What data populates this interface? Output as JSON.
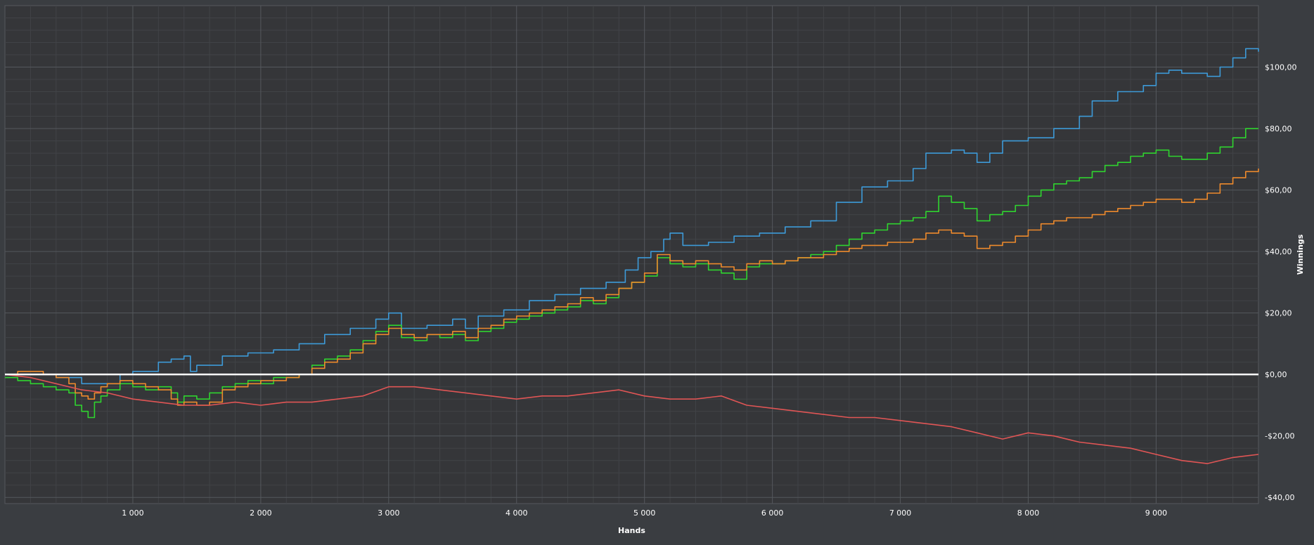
{
  "chart_data": {
    "type": "line",
    "xlabel": "Hands",
    "ylabel": "Winnings",
    "xlim": [
      0,
      9800
    ],
    "ylim": [
      -42,
      120
    ],
    "x_ticks": [
      1000,
      2000,
      3000,
      4000,
      5000,
      6000,
      7000,
      8000,
      9000
    ],
    "x_tick_labels": [
      "1 000",
      "2 000",
      "3 000",
      "4 000",
      "5 000",
      "6 000",
      "7 000",
      "8 000",
      "9 000"
    ],
    "y_ticks": [
      -40,
      -20,
      0,
      20,
      40,
      60,
      80,
      100
    ],
    "y_tick_labels": [
      "-$40,00",
      "-$20,00",
      "$0,00",
      "$20,00",
      "$40,00",
      "$60,00",
      "$80,00",
      "$100,00"
    ],
    "grid": true,
    "colors": {
      "background": "#3a3d41",
      "plot_background": "#353639",
      "grid_major": "#55585d",
      "grid_minor": "#414347",
      "zero_line": "#ffffff"
    },
    "series": [
      {
        "color": "#3d9ad8",
        "style": "step",
        "x": [
          0,
          200,
          400,
          600,
          800,
          900,
          1000,
          1200,
          1300,
          1400,
          1450,
          1500,
          1700,
          1900,
          2100,
          2300,
          2500,
          2700,
          2900,
          3000,
          3100,
          3300,
          3500,
          3600,
          3700,
          3900,
          4100,
          4300,
          4500,
          4700,
          4850,
          4950,
          5050,
          5150,
          5200,
          5300,
          5500,
          5700,
          5900,
          6100,
          6300,
          6500,
          6700,
          6900,
          7100,
          7200,
          7400,
          7500,
          7600,
          7700,
          7800,
          8000,
          8200,
          8400,
          8500,
          8700,
          8900,
          9000,
          9100,
          9200,
          9400,
          9500,
          9600,
          9700,
          9800
        ],
        "y": [
          0,
          0,
          -1,
          -3,
          -3,
          0,
          1,
          4,
          5,
          6,
          1,
          3,
          6,
          7,
          8,
          10,
          13,
          15,
          18,
          20,
          15,
          16,
          18,
          15,
          19,
          21,
          24,
          26,
          28,
          30,
          34,
          38,
          40,
          44,
          46,
          42,
          43,
          45,
          46,
          48,
          50,
          56,
          61,
          63,
          67,
          72,
          73,
          72,
          69,
          72,
          76,
          77,
          80,
          84,
          89,
          92,
          94,
          98,
          99,
          98,
          97,
          100,
          103,
          106,
          105
        ]
      },
      {
        "color": "#2fd42f",
        "style": "step",
        "x": [
          0,
          100,
          200,
          300,
          400,
          500,
          550,
          600,
          650,
          700,
          750,
          800,
          900,
          1000,
          1100,
          1200,
          1300,
          1350,
          1400,
          1500,
          1600,
          1700,
          1800,
          1900,
          2000,
          2100,
          2200,
          2300,
          2400,
          2500,
          2600,
          2700,
          2800,
          2900,
          3000,
          3100,
          3200,
          3300,
          3400,
          3500,
          3600,
          3700,
          3800,
          3900,
          4000,
          4100,
          4200,
          4300,
          4400,
          4500,
          4600,
          4700,
          4800,
          4900,
          5000,
          5100,
          5200,
          5300,
          5400,
          5500,
          5600,
          5700,
          5800,
          5900,
          6000,
          6100,
          6200,
          6300,
          6400,
          6500,
          6600,
          6700,
          6800,
          6900,
          7000,
          7100,
          7200,
          7300,
          7400,
          7500,
          7600,
          7700,
          7800,
          7900,
          8000,
          8100,
          8200,
          8300,
          8400,
          8500,
          8600,
          8700,
          8800,
          8900,
          9000,
          9100,
          9200,
          9300,
          9400,
          9500,
          9600,
          9700,
          9800
        ],
        "y": [
          -1,
          -2,
          -3,
          -4,
          -5,
          -6,
          -10,
          -12,
          -14,
          -9,
          -7,
          -5,
          -3,
          -4,
          -5,
          -4,
          -6,
          -9,
          -7,
          -8,
          -6,
          -4,
          -3,
          -2,
          -3,
          -1,
          -1,
          0,
          3,
          5,
          6,
          8,
          11,
          14,
          16,
          12,
          11,
          13,
          12,
          13,
          11,
          14,
          15,
          17,
          18,
          19,
          20,
          21,
          22,
          24,
          23,
          25,
          28,
          30,
          32,
          38,
          36,
          35,
          36,
          34,
          33,
          31,
          35,
          36,
          36,
          37,
          38,
          39,
          40,
          42,
          44,
          46,
          47,
          49,
          50,
          51,
          53,
          58,
          56,
          54,
          50,
          52,
          53,
          55,
          58,
          60,
          62,
          63,
          64,
          66,
          68,
          69,
          71,
          72,
          73,
          71,
          70,
          70,
          72,
          74,
          77,
          80,
          80
        ]
      },
      {
        "color": "#ee8a2c",
        "style": "step",
        "x": [
          0,
          100,
          200,
          300,
          400,
          500,
          550,
          600,
          650,
          700,
          750,
          800,
          900,
          1000,
          1100,
          1200,
          1300,
          1350,
          1400,
          1500,
          1600,
          1700,
          1800,
          1900,
          2000,
          2100,
          2200,
          2300,
          2400,
          2500,
          2600,
          2700,
          2800,
          2900,
          3000,
          3100,
          3200,
          3300,
          3400,
          3500,
          3600,
          3700,
          3800,
          3900,
          4000,
          4100,
          4200,
          4300,
          4400,
          4500,
          4600,
          4700,
          4800,
          4900,
          5000,
          5100,
          5200,
          5300,
          5400,
          5500,
          5600,
          5700,
          5800,
          5900,
          6000,
          6100,
          6200,
          6300,
          6400,
          6500,
          6600,
          6700,
          6800,
          6900,
          7000,
          7100,
          7200,
          7300,
          7400,
          7500,
          7600,
          7700,
          7800,
          7900,
          8000,
          8100,
          8200,
          8300,
          8400,
          8500,
          8600,
          8700,
          8800,
          8900,
          9000,
          9100,
          9200,
          9300,
          9400,
          9500,
          9600,
          9700,
          9800
        ],
        "y": [
          0,
          1,
          1,
          0,
          -1,
          -3,
          -6,
          -7,
          -8,
          -6,
          -4,
          -3,
          -2,
          -3,
          -4,
          -5,
          -8,
          -10,
          -9,
          -10,
          -9,
          -5,
          -4,
          -3,
          -2,
          -2,
          -1,
          0,
          2,
          4,
          5,
          7,
          10,
          13,
          15,
          13,
          12,
          13,
          13,
          14,
          12,
          15,
          16,
          18,
          19,
          20,
          21,
          22,
          23,
          25,
          24,
          26,
          28,
          30,
          33,
          39,
          37,
          36,
          37,
          36,
          35,
          34,
          36,
          37,
          36,
          37,
          38,
          38,
          39,
          40,
          41,
          42,
          42,
          43,
          43,
          44,
          46,
          47,
          46,
          45,
          41,
          42,
          43,
          45,
          47,
          49,
          50,
          51,
          51,
          52,
          53,
          54,
          55,
          56,
          57,
          57,
          56,
          57,
          59,
          62,
          64,
          66,
          67
        ]
      },
      {
        "color": "#e05555",
        "style": "line",
        "x": [
          0,
          200,
          400,
          600,
          800,
          1000,
          1200,
          1400,
          1600,
          1800,
          2000,
          2200,
          2400,
          2600,
          2800,
          3000,
          3200,
          3400,
          3600,
          3800,
          4000,
          4200,
          4400,
          4600,
          4800,
          5000,
          5200,
          5400,
          5600,
          5800,
          6000,
          6200,
          6400,
          6600,
          6800,
          7000,
          7200,
          7400,
          7600,
          7800,
          8000,
          8200,
          8400,
          8600,
          8800,
          9000,
          9200,
          9400,
          9600,
          9800
        ],
        "y": [
          0,
          -1,
          -3,
          -5,
          -6,
          -8,
          -9,
          -10,
          -10,
          -9,
          -10,
          -9,
          -9,
          -8,
          -7,
          -4,
          -4,
          -5,
          -6,
          -7,
          -8,
          -7,
          -7,
          -6,
          -5,
          -7,
          -8,
          -8,
          -7,
          -10,
          -11,
          -12,
          -13,
          -14,
          -14,
          -15,
          -16,
          -17,
          -19,
          -21,
          -19,
          -20,
          -22,
          -23,
          -24,
          -26,
          -28,
          -29,
          -27,
          -26
        ]
      }
    ]
  }
}
